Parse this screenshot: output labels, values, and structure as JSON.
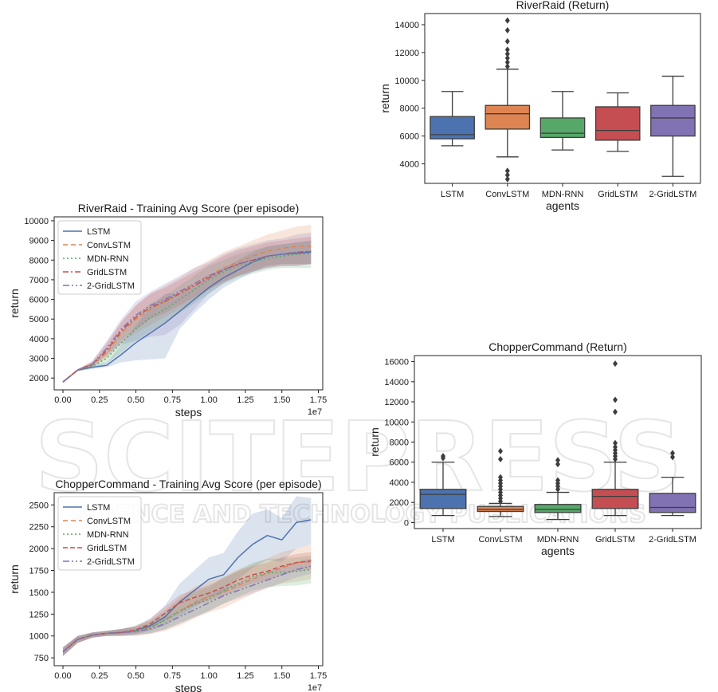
{
  "watermark": {
    "main": "SCITEPRESS",
    "sub": "SCIENCE AND TECHNOLOGY PUBLICATIONS"
  },
  "colors": {
    "LSTM": "#4c72b0",
    "ConvLSTM": "#dd8452",
    "MDN-RNN": "#55a868",
    "GridLSTM": "#c44e52",
    "2-GridLSTM": "#8172b3"
  },
  "chart_data": [
    {
      "id": "rr-box",
      "type": "box",
      "title": "RiverRaid (Return)",
      "xlabel": "agents",
      "ylabel": "return",
      "categories": [
        "LSTM",
        "ConvLSTM",
        "MDN-RNN",
        "GridLSTM",
        "2-GridLSTM"
      ],
      "ylim": [
        2600,
        14800
      ],
      "yticks": [
        4000,
        6000,
        8000,
        10000,
        12000,
        14000
      ],
      "ytick_labels": [
        "4000",
        "6000",
        "8000",
        "10000",
        "12000",
        "14000"
      ],
      "boxes": [
        {
          "name": "LSTM",
          "whislo": 5300,
          "q1": 5800,
          "med": 6100,
          "q3": 7400,
          "whishi": 9200,
          "fliers": []
        },
        {
          "name": "ConvLSTM",
          "whislo": 4500,
          "q1": 6500,
          "med": 7600,
          "q3": 8200,
          "whishi": 10800,
          "fliers": [
            2900,
            3200,
            3500,
            11000,
            11300,
            11600,
            11900,
            12200,
            12800,
            13600,
            14300
          ]
        },
        {
          "name": "MDN-RNN",
          "whislo": 5000,
          "q1": 5900,
          "med": 6200,
          "q3": 7300,
          "whishi": 9200,
          "fliers": []
        },
        {
          "name": "GridLSTM",
          "whislo": 4900,
          "q1": 5700,
          "med": 6400,
          "q3": 8100,
          "whishi": 9100,
          "fliers": []
        },
        {
          "name": "2-GridLSTM",
          "whislo": 3100,
          "q1": 6000,
          "med": 7300,
          "q3": 8200,
          "whishi": 10300,
          "fliers": []
        }
      ]
    },
    {
      "id": "cc-box",
      "type": "box",
      "title": "ChopperCommand (Return)",
      "xlabel": "agents",
      "ylabel": "return",
      "categories": [
        "LSTM",
        "ConvLSTM",
        "MDN-RNN",
        "GridLSTM",
        "2-GridLSTM"
      ],
      "ylim": [
        -600,
        16600
      ],
      "yticks": [
        0,
        2000,
        4000,
        6000,
        8000,
        10000,
        12000,
        14000,
        16000
      ],
      "ytick_labels": [
        "0",
        "2000",
        "4000",
        "6000",
        "8000",
        "10000",
        "12000",
        "14000",
        "16000"
      ],
      "boxes": [
        {
          "name": "LSTM",
          "whislo": 700,
          "q1": 1400,
          "med": 2800,
          "q3": 3300,
          "whishi": 6000,
          "fliers": [
            6400,
            6600
          ]
        },
        {
          "name": "ConvLSTM",
          "whislo": 600,
          "q1": 1100,
          "med": 1300,
          "q3": 1600,
          "whishi": 1900,
          "fliers": [
            2100,
            2400,
            2700,
            3000,
            3300,
            3600,
            3900,
            4200,
            4500,
            6300,
            7100
          ]
        },
        {
          "name": "MDN-RNN",
          "whislo": 300,
          "q1": 1000,
          "med": 1300,
          "q3": 1800,
          "whishi": 3000,
          "fliers": [
            3300,
            3600,
            3900,
            4200,
            5800,
            6200
          ]
        },
        {
          "name": "GridLSTM",
          "whislo": 700,
          "q1": 1400,
          "med": 2600,
          "q3": 3300,
          "whishi": 6000,
          "fliers": [
            6300,
            6600,
            6900,
            7200,
            7500,
            7900,
            11000,
            12200,
            15800
          ]
        },
        {
          "name": "2-GridLSTM",
          "whislo": 700,
          "q1": 1000,
          "med": 1500,
          "q3": 2900,
          "whishi": 4500,
          "fliers": [
            6500,
            6900
          ]
        }
      ]
    },
    {
      "id": "rr-line",
      "type": "line",
      "title": "RiverRaid - Training Avg Score (per episode)",
      "xlabel": "steps",
      "ylabel": "return",
      "x_offset_label": "1e7",
      "xlim": [
        -0.06,
        1.78
      ],
      "ylim": [
        1400,
        10200
      ],
      "xticks": [
        0,
        0.25,
        0.5,
        0.75,
        1.0,
        1.25,
        1.5,
        1.75
      ],
      "xtick_labels": [
        "0.00",
        "0.25",
        "0.50",
        "0.75",
        "1.00",
        "1.25",
        "1.50",
        "1.75"
      ],
      "yticks": [
        2000,
        3000,
        4000,
        5000,
        6000,
        7000,
        8000,
        9000,
        10000
      ],
      "ytick_labels": [
        "2000",
        "3000",
        "4000",
        "5000",
        "6000",
        "7000",
        "8000",
        "9000",
        "10000"
      ],
      "legend": "top-left",
      "x": [
        0,
        0.1,
        0.2,
        0.3,
        0.4,
        0.5,
        0.6,
        0.7,
        0.8,
        0.9,
        1.0,
        1.1,
        1.2,
        1.3,
        1.4,
        1.5,
        1.6,
        1.7
      ],
      "series": [
        {
          "name": "LSTM",
          "dash": "",
          "values": [
            1800,
            2400,
            2550,
            2650,
            3200,
            3800,
            4300,
            4800,
            5400,
            6000,
            6600,
            7100,
            7500,
            7900,
            8200,
            8300,
            8350,
            8400
          ],
          "lower": [
            1750,
            2350,
            2450,
            2550,
            2800,
            2900,
            2950,
            3000,
            4500,
            5300,
            6000,
            6600,
            7000,
            7400,
            7700,
            7800,
            7800,
            7800
          ],
          "upper": [
            1850,
            2450,
            2700,
            2800,
            3700,
            4700,
            5600,
            6300,
            6300,
            6700,
            7200,
            7600,
            8000,
            8400,
            8700,
            8800,
            8900,
            9000
          ]
        },
        {
          "name": "ConvLSTM",
          "dash": "6,4",
          "values": [
            1800,
            2400,
            2650,
            3300,
            4300,
            5000,
            5500,
            5900,
            6300,
            6800,
            7200,
            7600,
            7900,
            8200,
            8450,
            8600,
            8700,
            8700
          ],
          "lower": [
            1750,
            2350,
            2550,
            3000,
            3800,
            4300,
            4700,
            5100,
            5500,
            6000,
            6500,
            6900,
            7200,
            7500,
            7700,
            7800,
            7800,
            7800
          ],
          "upper": [
            1850,
            2450,
            2800,
            3700,
            4800,
            5700,
            6300,
            6700,
            7100,
            7600,
            8000,
            8400,
            8700,
            9000,
            9300,
            9500,
            9700,
            9800
          ]
        },
        {
          "name": "MDN-RNN",
          "dash": "2,3",
          "values": [
            1800,
            2400,
            2600,
            3000,
            3800,
            4500,
            5100,
            5500,
            6000,
            6500,
            7000,
            7400,
            7700,
            7900,
            8100,
            8200,
            8300,
            8350
          ],
          "lower": [
            1750,
            2350,
            2500,
            2750,
            3300,
            3900,
            4400,
            4800,
            5300,
            5800,
            6300,
            6800,
            7100,
            7300,
            7500,
            7600,
            7600,
            7600
          ],
          "upper": [
            1850,
            2450,
            2700,
            3300,
            4300,
            5100,
            5800,
            6200,
            6700,
            7200,
            7700,
            8000,
            8300,
            8500,
            8700,
            8800,
            8900,
            9000
          ]
        },
        {
          "name": "GridLSTM",
          "dash": "7,3,2,3",
          "values": [
            1800,
            2400,
            2700,
            3400,
            4400,
            5100,
            5600,
            5900,
            6300,
            6700,
            7100,
            7500,
            7800,
            8000,
            8200,
            8300,
            8400,
            8450
          ],
          "lower": [
            1750,
            2350,
            2600,
            3100,
            3900,
            4500,
            5000,
            5300,
            5700,
            6100,
            6500,
            6900,
            7200,
            7400,
            7600,
            7700,
            7700,
            7800
          ],
          "upper": [
            1850,
            2450,
            2850,
            3800,
            4900,
            5700,
            6300,
            6600,
            7000,
            7400,
            7800,
            8200,
            8500,
            8700,
            8900,
            9000,
            9100,
            9200
          ]
        },
        {
          "name": "2-GridLSTM",
          "dash": "8,3,2,3,2,3",
          "values": [
            1800,
            2400,
            2700,
            3500,
            4500,
            5200,
            5700,
            6000,
            6400,
            6800,
            7200,
            7500,
            7800,
            8000,
            8200,
            8300,
            8400,
            8450
          ],
          "lower": [
            1750,
            2350,
            2600,
            3200,
            3700,
            3900,
            4100,
            4200,
            4700,
            5500,
            6300,
            6800,
            7200,
            7400,
            7600,
            7700,
            7700,
            7800
          ],
          "upper": [
            1850,
            2450,
            2850,
            3900,
            5000,
            5900,
            6400,
            6800,
            7200,
            7600,
            7900,
            8300,
            8600,
            8800,
            9000,
            9100,
            9300,
            9400
          ]
        }
      ]
    },
    {
      "id": "cc-line",
      "type": "line",
      "title": "ChopperCommand - Training Avg Score (per episode)",
      "xlabel": "steps",
      "ylabel": "return",
      "x_offset_label": "1e7",
      "xlim": [
        -0.06,
        1.78
      ],
      "ylim": [
        660,
        2640
      ],
      "xticks": [
        0,
        0.25,
        0.5,
        0.75,
        1.0,
        1.25,
        1.5,
        1.75
      ],
      "xtick_labels": [
        "0.00",
        "0.25",
        "0.50",
        "0.75",
        "1.00",
        "1.25",
        "1.50",
        "1.75"
      ],
      "yticks": [
        750,
        1000,
        1250,
        1500,
        1750,
        2000,
        2250,
        2500
      ],
      "ytick_labels": [
        "750",
        "1000",
        "1250",
        "1500",
        "1750",
        "2000",
        "2250",
        "2500"
      ],
      "legend": "top-left",
      "x": [
        0,
        0.1,
        0.2,
        0.3,
        0.4,
        0.5,
        0.6,
        0.7,
        0.8,
        0.9,
        1.0,
        1.1,
        1.2,
        1.3,
        1.4,
        1.5,
        1.6,
        1.7
      ],
      "series": [
        {
          "name": "LSTM",
          "dash": "",
          "values": [
            820,
            960,
            1010,
            1030,
            1040,
            1060,
            1120,
            1220,
            1390,
            1520,
            1650,
            1700,
            1900,
            2050,
            2150,
            2100,
            2300,
            2330
          ],
          "lower": [
            770,
            920,
            980,
            1000,
            1010,
            1020,
            1060,
            1120,
            1230,
            1330,
            1440,
            1500,
            1650,
            1780,
            1870,
            1850,
            2000,
            2050
          ],
          "upper": [
            870,
            1000,
            1040,
            1060,
            1080,
            1120,
            1200,
            1350,
            1600,
            1750,
            1900,
            1950,
            2200,
            2400,
            2450,
            2350,
            2600,
            2580
          ]
        },
        {
          "name": "ConvLSTM",
          "dash": "6,4",
          "values": [
            820,
            960,
            1010,
            1030,
            1040,
            1060,
            1100,
            1180,
            1280,
            1380,
            1450,
            1500,
            1580,
            1650,
            1720,
            1780,
            1840,
            1850
          ],
          "lower": [
            770,
            920,
            980,
            1000,
            1000,
            1000,
            1020,
            1060,
            1120,
            1200,
            1270,
            1320,
            1400,
            1480,
            1550,
            1600,
            1620,
            1650
          ],
          "upper": [
            870,
            1000,
            1040,
            1060,
            1080,
            1120,
            1180,
            1300,
            1440,
            1560,
            1630,
            1680,
            1760,
            1820,
            1890,
            1960,
            2000,
            2050
          ]
        },
        {
          "name": "MDN-RNN",
          "dash": "2,3",
          "values": [
            820,
            960,
            1010,
            1030,
            1040,
            1060,
            1100,
            1180,
            1280,
            1360,
            1420,
            1520,
            1600,
            1680,
            1720,
            1730,
            1740,
            1760
          ],
          "lower": [
            770,
            920,
            980,
            1000,
            1000,
            1010,
            1030,
            1080,
            1150,
            1220,
            1280,
            1370,
            1450,
            1520,
            1560,
            1570,
            1580,
            1600
          ],
          "upper": [
            870,
            1000,
            1040,
            1060,
            1080,
            1110,
            1170,
            1280,
            1410,
            1500,
            1560,
            1670,
            1750,
            1840,
            1880,
            1890,
            1900,
            1920
          ]
        },
        {
          "name": "GridLSTM",
          "dash": "6,3",
          "values": [
            820,
            960,
            1010,
            1030,
            1040,
            1070,
            1140,
            1260,
            1380,
            1440,
            1490,
            1560,
            1640,
            1700,
            1740,
            1800,
            1840,
            1860
          ],
          "lower": [
            770,
            920,
            980,
            1000,
            1010,
            1030,
            1080,
            1180,
            1290,
            1350,
            1400,
            1460,
            1540,
            1600,
            1640,
            1700,
            1740,
            1760
          ],
          "upper": [
            870,
            1000,
            1040,
            1060,
            1080,
            1110,
            1200,
            1340,
            1470,
            1530,
            1580,
            1660,
            1740,
            1800,
            1840,
            1900,
            1940,
            1960
          ]
        },
        {
          "name": "2-GridLSTM",
          "dash": "8,3,2,3,2,3",
          "values": [
            820,
            960,
            1010,
            1030,
            1040,
            1050,
            1080,
            1140,
            1220,
            1300,
            1380,
            1460,
            1520,
            1580,
            1640,
            1700,
            1760,
            1800
          ],
          "lower": [
            770,
            920,
            980,
            1000,
            1000,
            1010,
            1030,
            1070,
            1140,
            1210,
            1290,
            1370,
            1430,
            1490,
            1550,
            1610,
            1670,
            1710
          ],
          "upper": [
            870,
            1000,
            1040,
            1060,
            1080,
            1090,
            1130,
            1210,
            1300,
            1390,
            1470,
            1550,
            1610,
            1670,
            1730,
            1790,
            1850,
            1890
          ]
        }
      ]
    }
  ]
}
